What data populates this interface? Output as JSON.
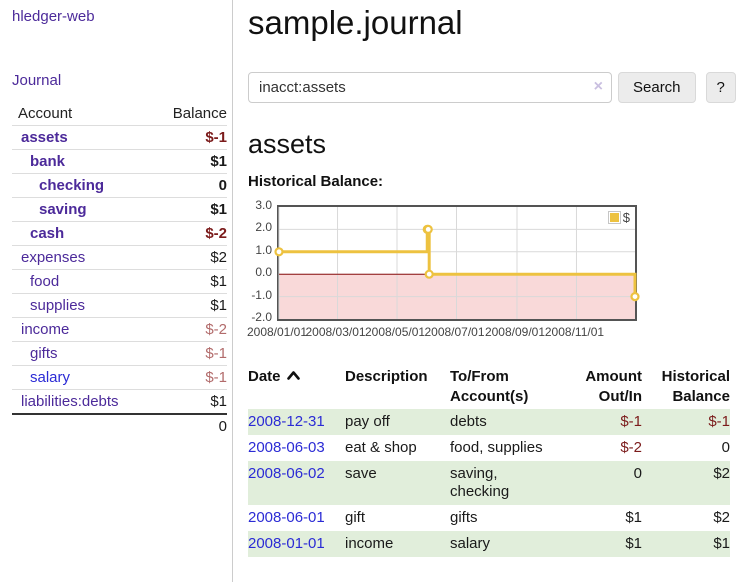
{
  "app": {
    "title": "hledger-web"
  },
  "sidebar": {
    "journal_link": "Journal",
    "table": {
      "headers": {
        "account": "Account",
        "balance": "Balance"
      },
      "rows": [
        {
          "account": "assets",
          "balance": "$-1",
          "indent": 0,
          "bold": true,
          "neg": "strong"
        },
        {
          "account": "bank",
          "balance": "$1",
          "indent": 1,
          "bold": true,
          "neg": ""
        },
        {
          "account": "checking",
          "balance": "0",
          "indent": 2,
          "bold": true,
          "neg": ""
        },
        {
          "account": "saving",
          "balance": "$1",
          "indent": 2,
          "bold": true,
          "neg": ""
        },
        {
          "account": "cash",
          "balance": "$-2",
          "indent": 1,
          "bold": true,
          "neg": "strong"
        },
        {
          "account": "expenses",
          "balance": "$2",
          "indent": 0,
          "bold": false,
          "neg": ""
        },
        {
          "account": "food",
          "balance": "$1",
          "indent": 1,
          "bold": false,
          "neg": ""
        },
        {
          "account": "supplies",
          "balance": "$1",
          "indent": 1,
          "bold": false,
          "neg": ""
        },
        {
          "account": "income",
          "balance": "$-2",
          "indent": 0,
          "bold": false,
          "neg": "soft"
        },
        {
          "account": "gifts",
          "balance": "$-1",
          "indent": 1,
          "bold": false,
          "neg": "soft"
        },
        {
          "account": "salary",
          "balance": "$-1",
          "indent": 1,
          "bold": false,
          "neg": "soft",
          "blue": true
        },
        {
          "account": "liabilities:debts",
          "balance": "$1",
          "indent": 0,
          "bold": false,
          "neg": ""
        }
      ],
      "total": "0"
    }
  },
  "main": {
    "title": "sample.journal",
    "search": {
      "value": "inacct:assets",
      "clear_icon": "×",
      "button": "Search",
      "help_button": "?"
    },
    "account_heading": "assets",
    "chart_heading": "Historical Balance:"
  },
  "chart_data": {
    "type": "line",
    "title": "Historical Balance",
    "step": true,
    "series": [
      {
        "name": "$",
        "points": [
          [
            "2008-01-01",
            1
          ],
          [
            "2008-06-01",
            2
          ],
          [
            "2008-06-02",
            2
          ],
          [
            "2008-06-03",
            0
          ],
          [
            "2008-12-31",
            -1
          ]
        ]
      }
    ],
    "x_range": [
      "2008-01-01",
      "2008-12-31"
    ],
    "ylim": [
      -2,
      3
    ],
    "y_ticks": [
      "3.0",
      "2.0",
      "1.0",
      "0.0",
      "-1.0",
      "-2.0"
    ],
    "x_ticks": [
      "2008/01/01",
      "2008/03/01",
      "2008/05/01",
      "2008/07/01",
      "2008/09/01",
      "2008/11/01"
    ],
    "grid": true,
    "legend": "$",
    "legend_position": "top-right",
    "colors": {
      "line": "#edc240",
      "marker_fill": "#ffffff",
      "negative_region": "#f9d9d9",
      "zero_line": "#8c0d0d",
      "grid": "#d9d9d9",
      "border": "#545454"
    }
  },
  "register": {
    "headers": [
      {
        "key": "date",
        "lines": [
          "Date"
        ],
        "align": "left",
        "sortable": true
      },
      {
        "key": "description",
        "lines": [
          "Description"
        ],
        "align": "left",
        "sortable": false
      },
      {
        "key": "accounts",
        "lines": [
          "To/From",
          "Account(s)"
        ],
        "align": "left",
        "sortable": false
      },
      {
        "key": "amount",
        "lines": [
          "Amount",
          "Out/In"
        ],
        "align": "right",
        "sortable": false
      },
      {
        "key": "balance",
        "lines": [
          "Historical",
          "Balance"
        ],
        "align": "right",
        "sortable": false
      }
    ],
    "rows": [
      {
        "date": "2008-12-31",
        "description": "pay off",
        "accounts": "debts",
        "amount": "$-1",
        "balance": "$-1",
        "amount_neg": true,
        "balance_neg": true
      },
      {
        "date": "2008-06-03",
        "description": "eat & shop",
        "accounts": "food, supplies",
        "amount": "$-2",
        "balance": "0",
        "amount_neg": true,
        "balance_neg": false
      },
      {
        "date": "2008-06-02",
        "description": "save",
        "accounts": "saving, checking",
        "amount": "0",
        "balance": "$2",
        "amount_neg": false,
        "balance_neg": false
      },
      {
        "date": "2008-06-01",
        "description": "gift",
        "accounts": "gifts",
        "amount": "$1",
        "balance": "$2",
        "amount_neg": false,
        "balance_neg": false
      },
      {
        "date": "2008-01-01",
        "description": "income",
        "accounts": "salary",
        "amount": "$1",
        "balance": "$1",
        "amount_neg": false,
        "balance_neg": false
      }
    ]
  }
}
